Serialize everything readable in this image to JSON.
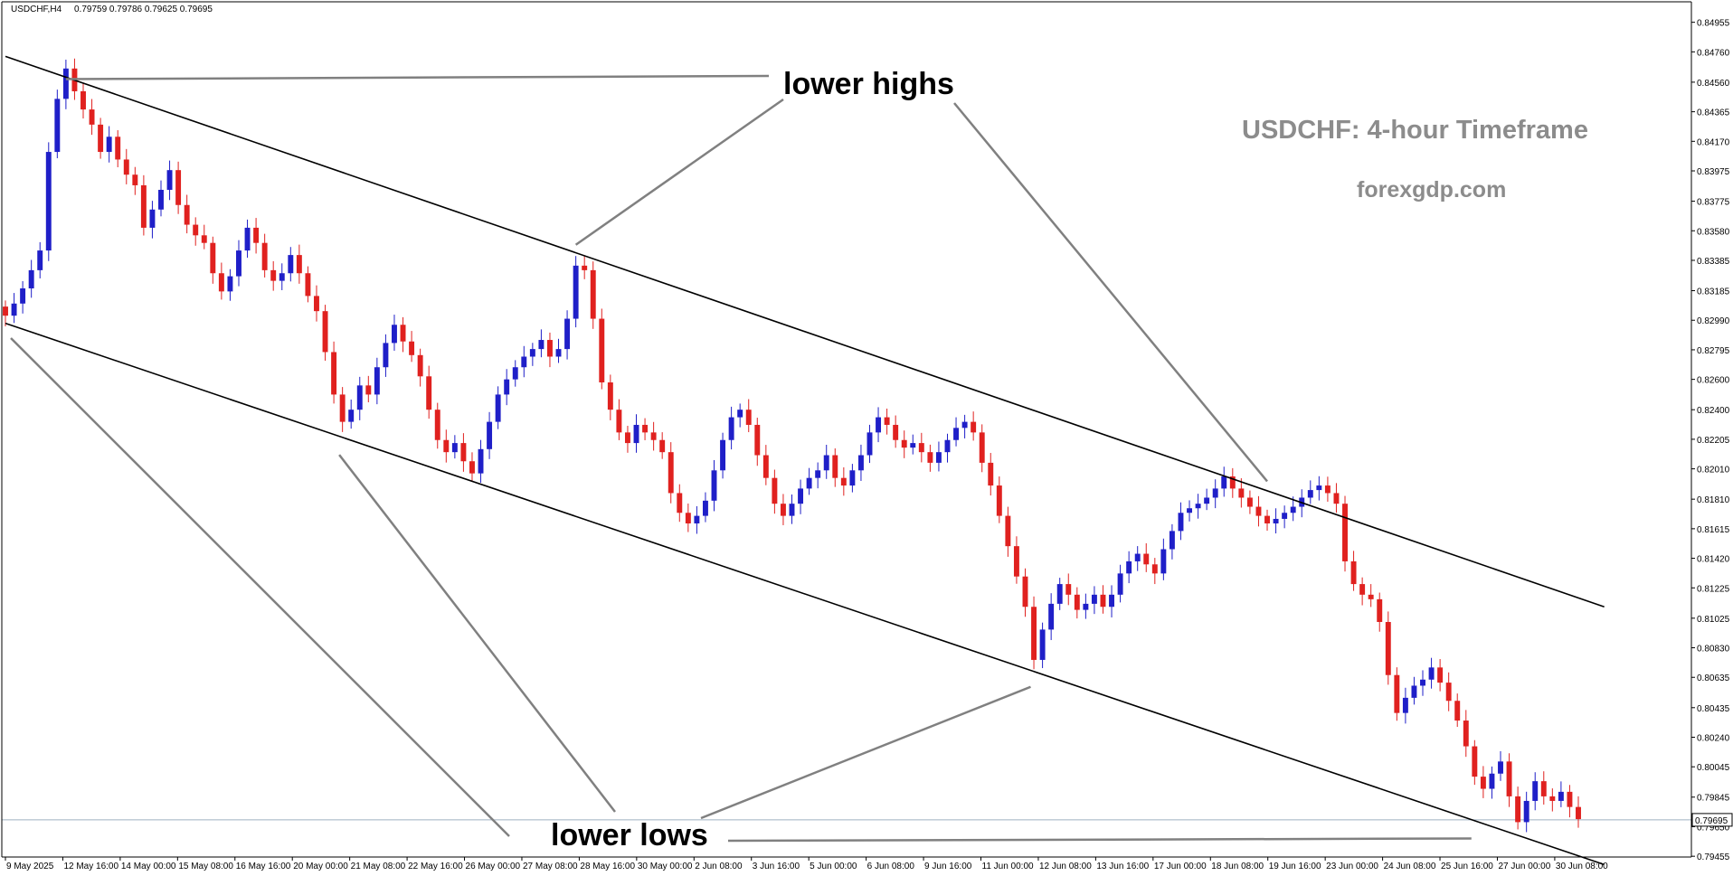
{
  "window": {
    "header_symbol": "USDCHF,H4",
    "header_values": "0.79759 0.79786 0.79625 0.79695",
    "current_price_label": "0.79695"
  },
  "annotations": {
    "lower_highs": "lower highs",
    "lower_lows": "lower lows",
    "title": "USDCHF: 4-hour Timeframe",
    "site": "forexgdp.com"
  },
  "colors": {
    "bull": "#1f1fc8",
    "bear": "#e0211f",
    "line": "#000000",
    "arrow": "#808080",
    "price_line": "#9fb0c0",
    "grey_text": "#8c8c8c"
  },
  "chart_data": {
    "type": "candlestick",
    "symbol": "USDCHF",
    "timeframe": "H4",
    "ylim": [
      0.7945,
      0.8509
    ],
    "y_ticks": [
      "0.84955",
      "0.84760",
      "0.84560",
      "0.84365",
      "0.84170",
      "0.83975",
      "0.83775",
      "0.83580",
      "0.83385",
      "0.83185",
      "0.82990",
      "0.82795",
      "0.82600",
      "0.82400",
      "0.82205",
      "0.82010",
      "0.81810",
      "0.81615",
      "0.81420",
      "0.81225",
      "0.81025",
      "0.80830",
      "0.80635",
      "0.80435",
      "0.80240",
      "0.80045",
      "0.79845",
      "0.79650",
      "0.79455"
    ],
    "x_ticks": [
      "9 May 2025",
      "12 May 16:00",
      "14 May 00:00",
      "15 May 08:00",
      "16 May 16:00",
      "20 May 00:00",
      "21 May 08:00",
      "22 May 16:00",
      "26 May 00:00",
      "27 May 08:00",
      "28 May 16:00",
      "30 May 00:00",
      "2 Jun 08:00",
      "3 Jun 16:00",
      "5 Jun 00:00",
      "6 Jun 08:00",
      "9 Jun 16:00",
      "11 Jun 00:00",
      "12 Jun 08:00",
      "13 Jun 16:00",
      "17 Jun 00:00",
      "18 Jun 08:00",
      "19 Jun 16:00",
      "23 Jun 00:00",
      "24 Jun 08:00",
      "25 Jun 16:00",
      "27 Jun 00:00",
      "30 Jun 08:00"
    ],
    "current_price": 0.79695,
    "channel": {
      "upper": [
        [
          0,
          0.8473
        ],
        [
          185,
          0.811
        ]
      ],
      "lower": [
        [
          0,
          0.8297
        ],
        [
          185,
          0.794
        ]
      ]
    },
    "lower_highs_points": [
      [
        7,
        0.8458
      ],
      [
        66,
        0.8344
      ],
      [
        146,
        0.8188
      ]
    ],
    "lower_lows_points": [
      [
        0,
        0.8292
      ],
      [
        38,
        0.8215
      ],
      [
        118,
        0.8062
      ],
      [
        169,
        0.7962
      ]
    ],
    "closes": [
      0.8302,
      0.831,
      0.832,
      0.8332,
      0.8345,
      0.841,
      0.8445,
      0.8465,
      0.845,
      0.8438,
      0.8428,
      0.841,
      0.842,
      0.8405,
      0.8395,
      0.8388,
      0.836,
      0.8372,
      0.8385,
      0.8398,
      0.8375,
      0.8362,
      0.8355,
      0.835,
      0.833,
      0.8318,
      0.8328,
      0.8345,
      0.836,
      0.835,
      0.8332,
      0.8325,
      0.833,
      0.8342,
      0.833,
      0.8315,
      0.8305,
      0.8278,
      0.825,
      0.8232,
      0.824,
      0.8256,
      0.825,
      0.8268,
      0.8284,
      0.8296,
      0.8285,
      0.8276,
      0.8262,
      0.824,
      0.822,
      0.8212,
      0.8218,
      0.8206,
      0.8198,
      0.8214,
      0.8232,
      0.825,
      0.826,
      0.8268,
      0.8275,
      0.828,
      0.8286,
      0.8275,
      0.828,
      0.83,
      0.8335,
      0.8332,
      0.83,
      0.8258,
      0.824,
      0.8225,
      0.8218,
      0.823,
      0.8225,
      0.822,
      0.8212,
      0.8185,
      0.8172,
      0.8165,
      0.817,
      0.818,
      0.82,
      0.822,
      0.8235,
      0.824,
      0.823,
      0.821,
      0.8195,
      0.8178,
      0.817,
      0.8178,
      0.8188,
      0.8195,
      0.82,
      0.821,
      0.8195,
      0.819,
      0.82,
      0.821,
      0.8225,
      0.8235,
      0.823,
      0.822,
      0.8215,
      0.8218,
      0.8212,
      0.8205,
      0.8212,
      0.822,
      0.8228,
      0.8232,
      0.8225,
      0.8205,
      0.819,
      0.817,
      0.815,
      0.813,
      0.811,
      0.8075,
      0.8095,
      0.8112,
      0.8125,
      0.8118,
      0.8108,
      0.8112,
      0.8118,
      0.811,
      0.8118,
      0.8132,
      0.814,
      0.8145,
      0.8138,
      0.8132,
      0.8148,
      0.816,
      0.8172,
      0.8175,
      0.8178,
      0.8182,
      0.8188,
      0.8196,
      0.8188,
      0.8182,
      0.8176,
      0.817,
      0.8165,
      0.8168,
      0.8172,
      0.8176,
      0.8182,
      0.8187,
      0.819,
      0.8185,
      0.8178,
      0.814,
      0.8125,
      0.8118,
      0.8115,
      0.81,
      0.8065,
      0.804,
      0.805,
      0.8058,
      0.8062,
      0.807,
      0.806,
      0.8048,
      0.8035,
      0.8018,
      0.7998,
      0.799,
      0.8,
      0.8008,
      0.7985,
      0.7968,
      0.7982,
      0.7995,
      0.7985,
      0.7982,
      0.7988,
      0.7978,
      0.797
    ]
  }
}
